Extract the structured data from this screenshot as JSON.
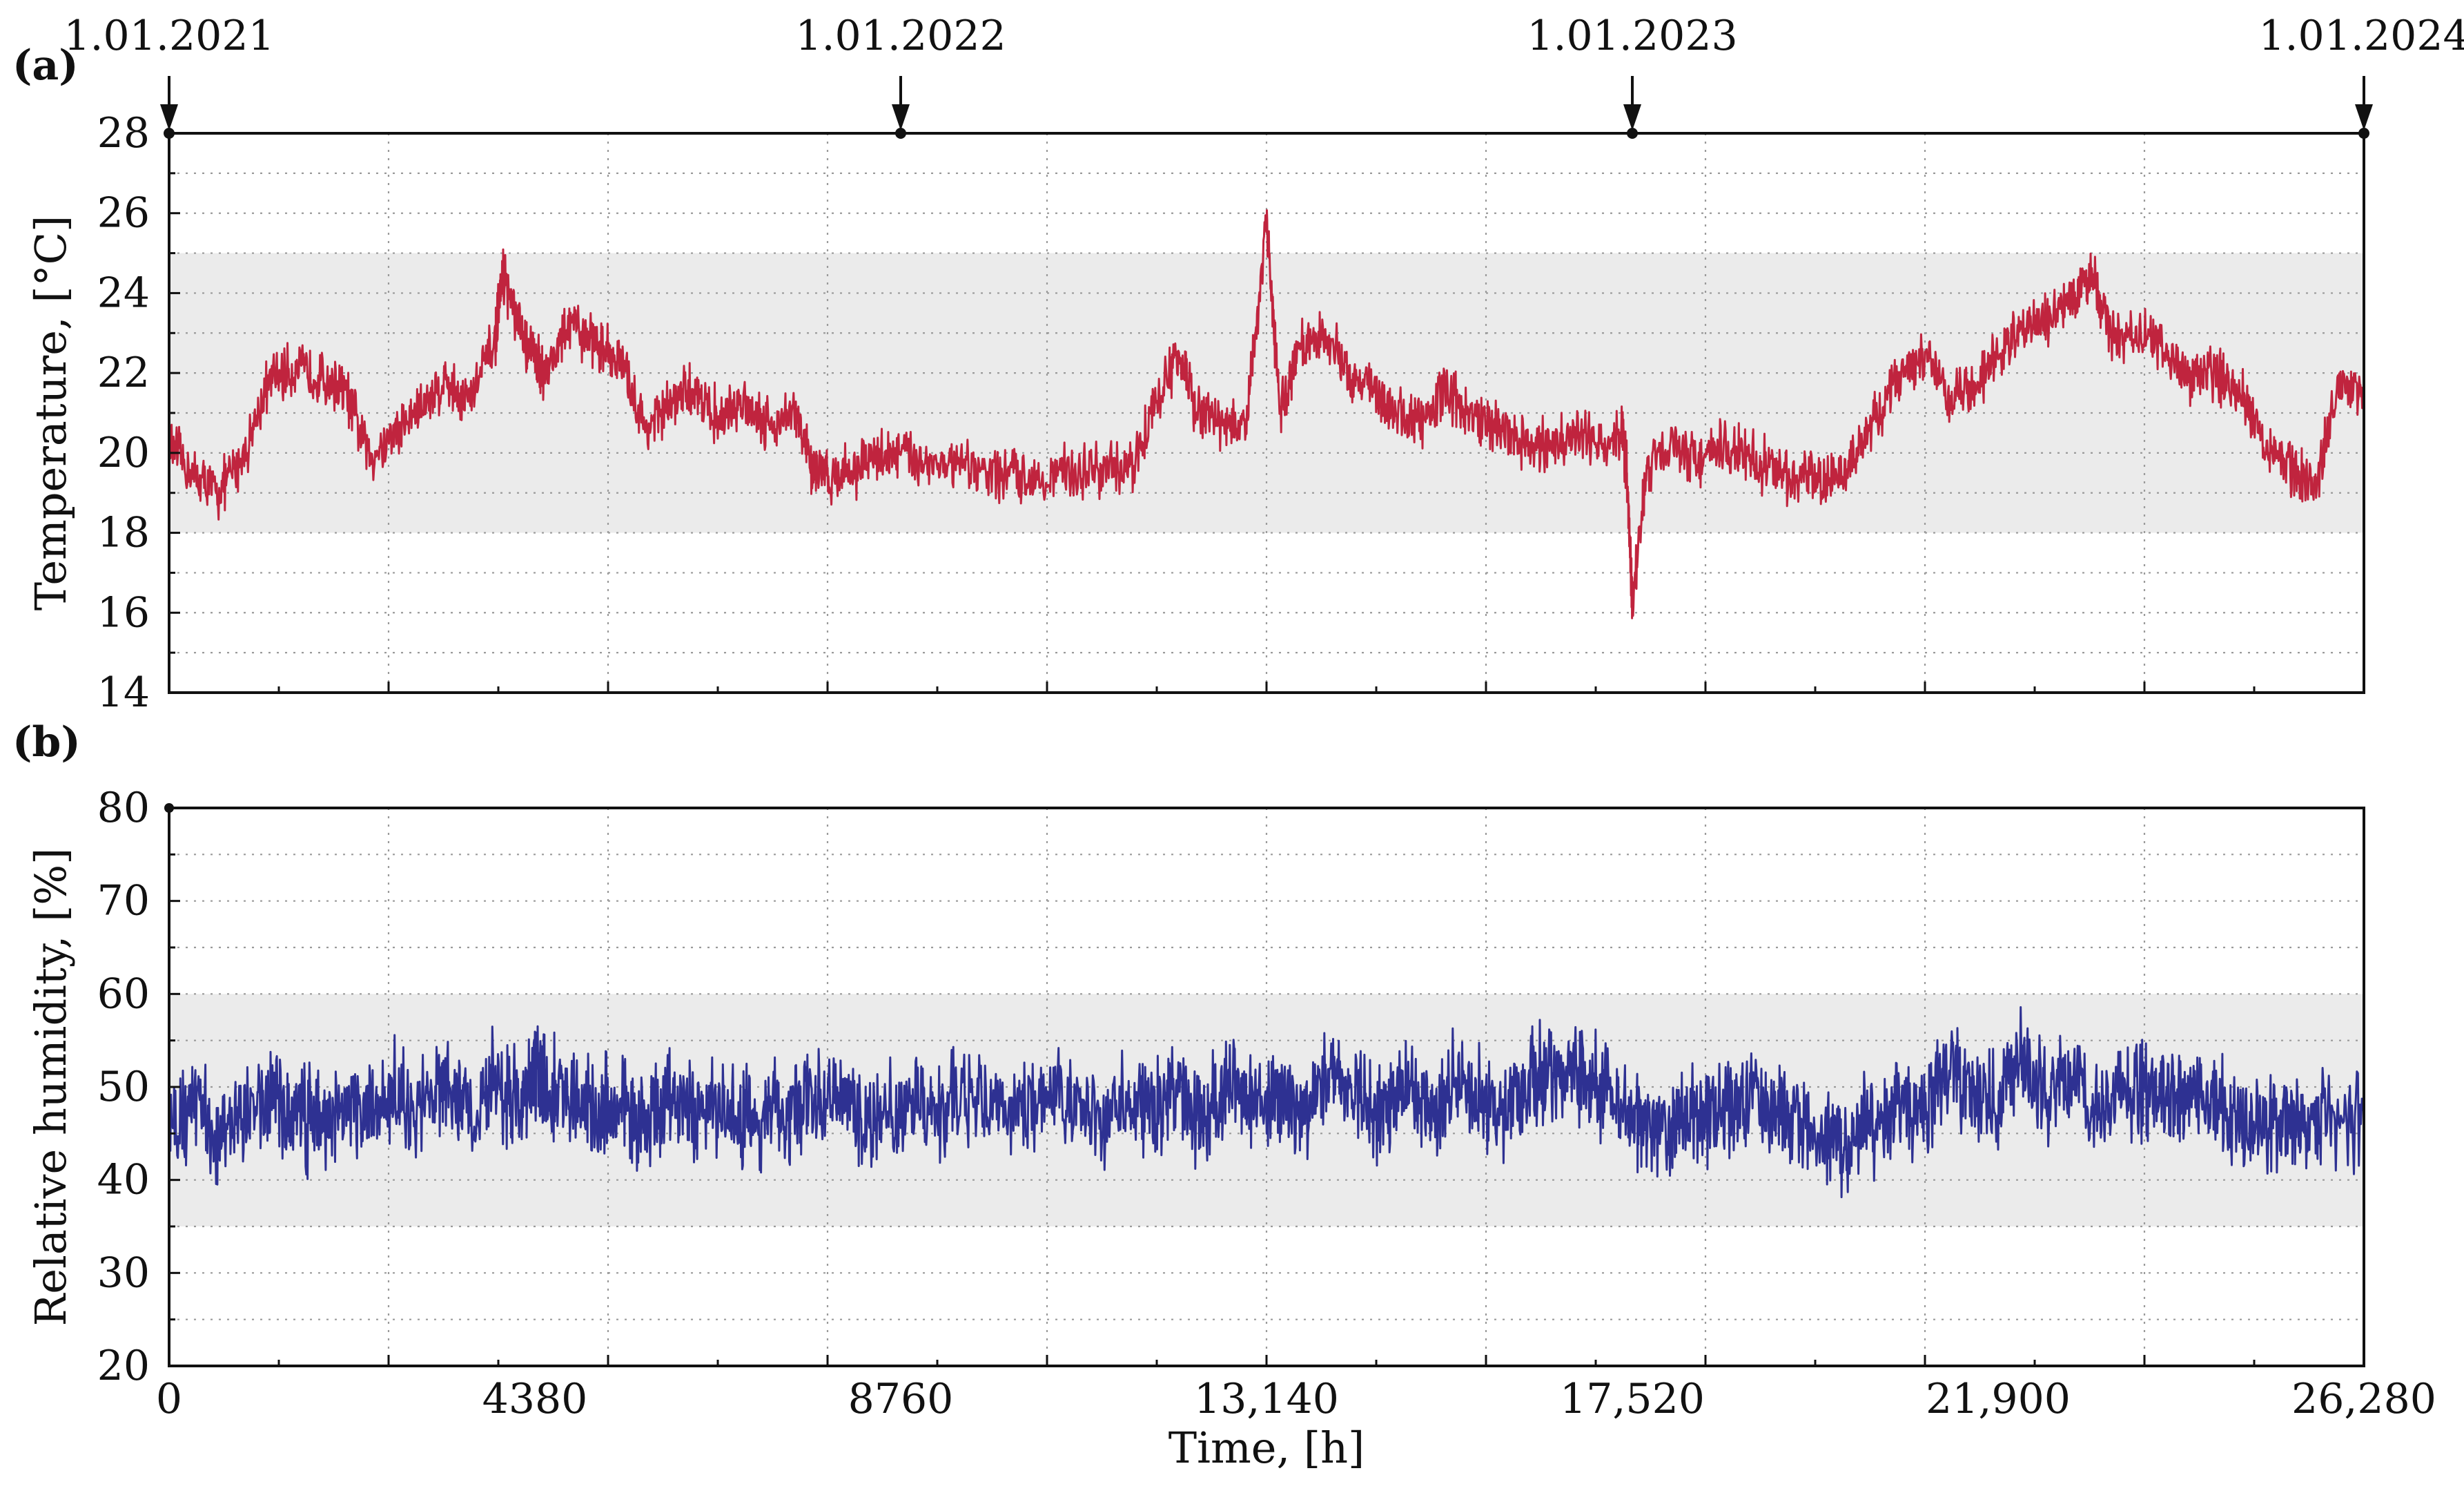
{
  "chart_data": [
    {
      "type": "line",
      "panel_label": "(a)",
      "ylabel": "Temperature, [°C]",
      "xlim": [
        0,
        26280
      ],
      "ylim": [
        14,
        28
      ],
      "yticks": [
        14,
        16,
        18,
        20,
        22,
        24,
        26,
        28
      ],
      "grid": true,
      "comfort_band": [
        18,
        25
      ],
      "date_markers": [
        {
          "hour": 0,
          "label": "1.01.2021"
        },
        {
          "hour": 8760,
          "label": "1.01.2022"
        },
        {
          "hour": 17520,
          "label": "1.01.2023"
        },
        {
          "hour": 26280,
          "label": "1.01.2024"
        }
      ],
      "series": [
        {
          "color": "#c0243e",
          "x": [
            0,
            300,
            600,
            900,
            1200,
            1500,
            1800,
            2100,
            2400,
            2700,
            3000,
            3300,
            3600,
            3900,
            4000,
            4200,
            4380,
            4500,
            4800,
            5100,
            5400,
            5700,
            6000,
            6300,
            6600,
            6900,
            7200,
            7500,
            7700,
            7900,
            8200,
            8500,
            8760,
            9100,
            9500,
            9900,
            10300,
            10700,
            11100,
            11500,
            11800,
            12100,
            12300,
            12600,
            12900,
            13140,
            13300,
            13500,
            13800,
            14100,
            14400,
            14700,
            15000,
            15300,
            15600,
            15900,
            16200,
            16500,
            16800,
            17100,
            17400,
            17450,
            17520,
            17700,
            18000,
            18300,
            18600,
            18900,
            19200,
            19500,
            19800,
            20100,
            20400,
            20700,
            21000,
            21300,
            21600,
            21900,
            22200,
            22500,
            22800,
            23000,
            23300,
            23600,
            23900,
            24200,
            24500,
            24800,
            25100,
            25400,
            25700,
            26000,
            26280
          ],
          "y": [
            20.2,
            19.4,
            19.0,
            20.0,
            21.8,
            22.1,
            21.9,
            21.6,
            19.9,
            20.5,
            21.1,
            21.8,
            21.3,
            22.8,
            24.5,
            23.0,
            22.4,
            22.0,
            23.2,
            22.8,
            22.3,
            20.6,
            21.2,
            21.6,
            20.8,
            21.3,
            20.7,
            21.0,
            19.6,
            19.4,
            19.6,
            19.9,
            20.0,
            19.8,
            19.6,
            19.5,
            19.4,
            19.5,
            19.6,
            19.5,
            21.2,
            22.5,
            21.0,
            20.8,
            20.6,
            25.8,
            21.0,
            22.5,
            23.0,
            22.1,
            21.6,
            21.0,
            20.8,
            21.6,
            20.9,
            20.7,
            20.3,
            20.1,
            20.4,
            20.3,
            20.5,
            19.6,
            16.2,
            19.7,
            20.3,
            19.8,
            20.1,
            19.9,
            19.6,
            19.4,
            19.2,
            19.6,
            20.8,
            21.9,
            22.6,
            21.3,
            21.7,
            22.4,
            23.1,
            23.4,
            23.9,
            24.5,
            22.8,
            23.0,
            22.5,
            21.9,
            22.0,
            21.6,
            20.3,
            19.6,
            19.2,
            21.8,
            21.6
          ]
        }
      ]
    },
    {
      "type": "line",
      "panel_label": "(b)",
      "xlabel": "Time, [h]",
      "ylabel": "Relative humidity, [%]",
      "xlim": [
        0,
        26280
      ],
      "ylim": [
        20,
        80
      ],
      "xticks": [
        0,
        4380,
        8760,
        13140,
        17520,
        21900,
        26280
      ],
      "xtick_labels": [
        "0",
        "4380",
        "8760",
        "13,140",
        "17,520",
        "21,900",
        "26,280"
      ],
      "yticks": [
        20,
        30,
        40,
        50,
        60,
        70,
        80
      ],
      "grid": true,
      "comfort_band": [
        35,
        60
      ],
      "series": [
        {
          "color": "#2e3192",
          "x": [
            0,
            300,
            600,
            900,
            1200,
            1500,
            1800,
            2100,
            2400,
            2700,
            3000,
            3300,
            3600,
            3900,
            4200,
            4380,
            4500,
            4800,
            5100,
            5400,
            5700,
            6000,
            6300,
            6600,
            6900,
            7200,
            7500,
            7800,
            8100,
            8400,
            8760,
            9100,
            9500,
            9900,
            10300,
            10700,
            11100,
            11500,
            11800,
            12100,
            12400,
            12700,
            13000,
            13300,
            13600,
            13900,
            14200,
            14500,
            14800,
            15100,
            15400,
            15700,
            16000,
            16300,
            16600,
            16900,
            17200,
            17520,
            17700,
            18000,
            18300,
            18600,
            18900,
            19200,
            19500,
            19800,
            20100,
            20400,
            20700,
            21000,
            21300,
            21600,
            21900,
            22200,
            22500,
            22800,
            23100,
            23400,
            23700,
            24000,
            24300,
            24600,
            24900,
            25200,
            25500,
            25800,
            26280
          ],
          "y": [
            46,
            48,
            45,
            47,
            49,
            47,
            46,
            48,
            47,
            49,
            48,
            50,
            47,
            51,
            48,
            52,
            50,
            49,
            47,
            48,
            46,
            49,
            47,
            48,
            46,
            47,
            48,
            49,
            48,
            47,
            48,
            47,
            49,
            48,
            48,
            49,
            47,
            48,
            47,
            50,
            46,
            51,
            48,
            50,
            47,
            52,
            49,
            47,
            50,
            48,
            51,
            49,
            47,
            50,
            52,
            51,
            50,
            46,
            47,
            45,
            48,
            47,
            49,
            48,
            47,
            45,
            44,
            46,
            48,
            47,
            52,
            50,
            48,
            53,
            49,
            51,
            48,
            50,
            49,
            48,
            50,
            47,
            46,
            47,
            46,
            46,
            47
          ]
        }
      ]
    }
  ]
}
